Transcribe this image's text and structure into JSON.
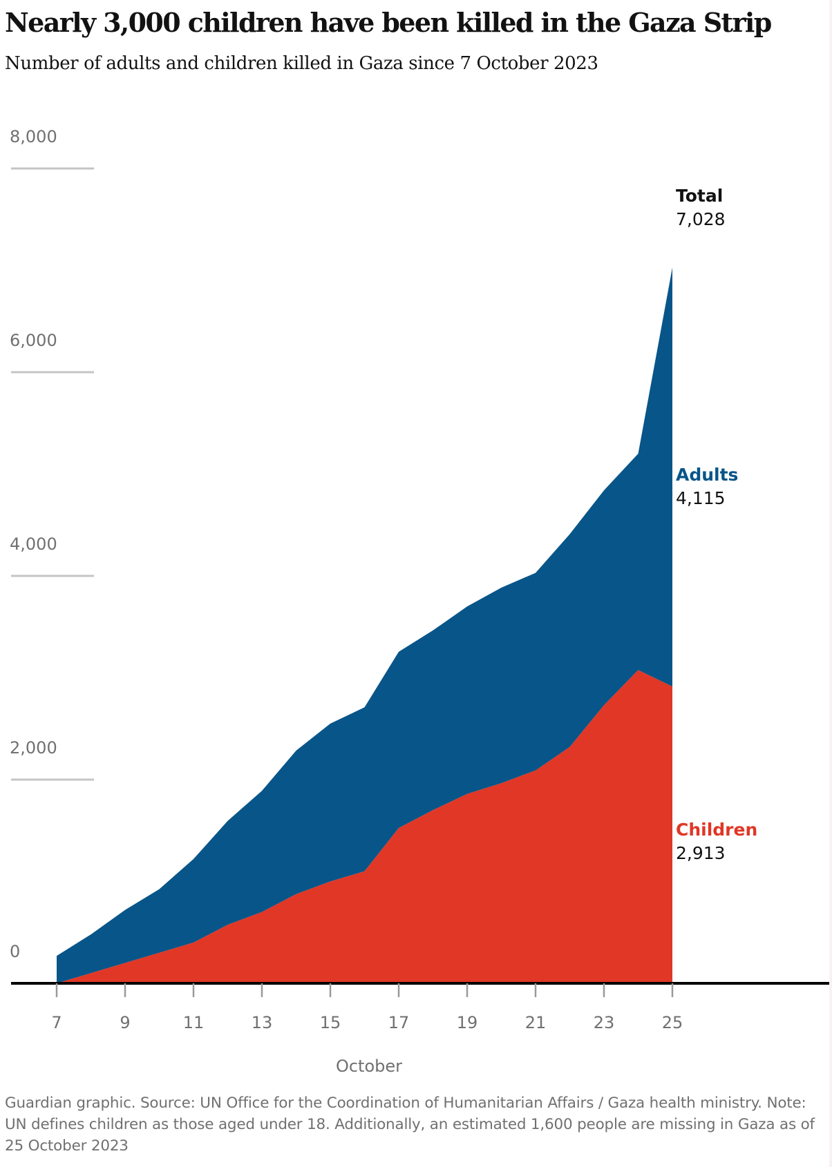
{
  "chart_data": {
    "type": "area",
    "stacked": true,
    "title": "Nearly 3,000 children have been killed in the Gaza Strip",
    "subtitle": "Number of adults and children killed in Gaza since 7 October 2023",
    "xlabel": "October",
    "ylabel": "",
    "x": [
      7,
      8,
      9,
      10,
      11,
      12,
      13,
      14,
      15,
      16,
      17,
      18,
      19,
      20,
      21,
      22,
      23,
      24,
      25
    ],
    "x_ticks": [
      "7",
      "9",
      "11",
      "13",
      "15",
      "17",
      "19",
      "21",
      "23",
      "25"
    ],
    "y_ticks": [
      "0",
      "2,000",
      "4,000",
      "6,000",
      "8,000"
    ],
    "ylim": [
      0,
      8250
    ],
    "grid": false,
    "series": [
      {
        "name": "Children",
        "color": "#e03726",
        "values": [
          0,
          100,
          200,
          300,
          400,
          575,
          700,
          875,
          1000,
          1100,
          1525,
          1700,
          1860,
          1965,
          2090,
          2320,
          2730,
          3075,
          2913
        ]
      },
      {
        "name": "Adults",
        "color": "#085589",
        "values": [
          270,
          380,
          520,
          625,
          820,
          1020,
          1190,
          1410,
          1550,
          1610,
          1730,
          1765,
          1840,
          1920,
          1940,
          2090,
          2110,
          2125,
          4115
        ]
      }
    ],
    "total_values": [
      270,
      480,
      720,
      925,
      1220,
      1595,
      1890,
      2285,
      2550,
      2710,
      3255,
      3465,
      3700,
      3885,
      4030,
      4410,
      4840,
      5200,
      7028
    ],
    "end_labels": [
      {
        "name": "Total",
        "value": "7,028",
        "color": "#121212"
      },
      {
        "name": "Adults",
        "value": "4,115",
        "color": "#085589"
      },
      {
        "name": "Children",
        "value": "2,913",
        "color": "#e03726"
      }
    ]
  },
  "footnote": "Guardian graphic. Source: UN Office for the Coordination of Humanitarian Affairs / Gaza health ministry. Note: UN defines children as those aged under 18. Additionally, an estimated 1,600 people are missing in Gaza as of 25 October 2023",
  "colors": {
    "children": "#e03726",
    "adults": "#085589",
    "axis": "#000000",
    "tick_label": "#707070",
    "gridline": "#c4c4c4"
  }
}
